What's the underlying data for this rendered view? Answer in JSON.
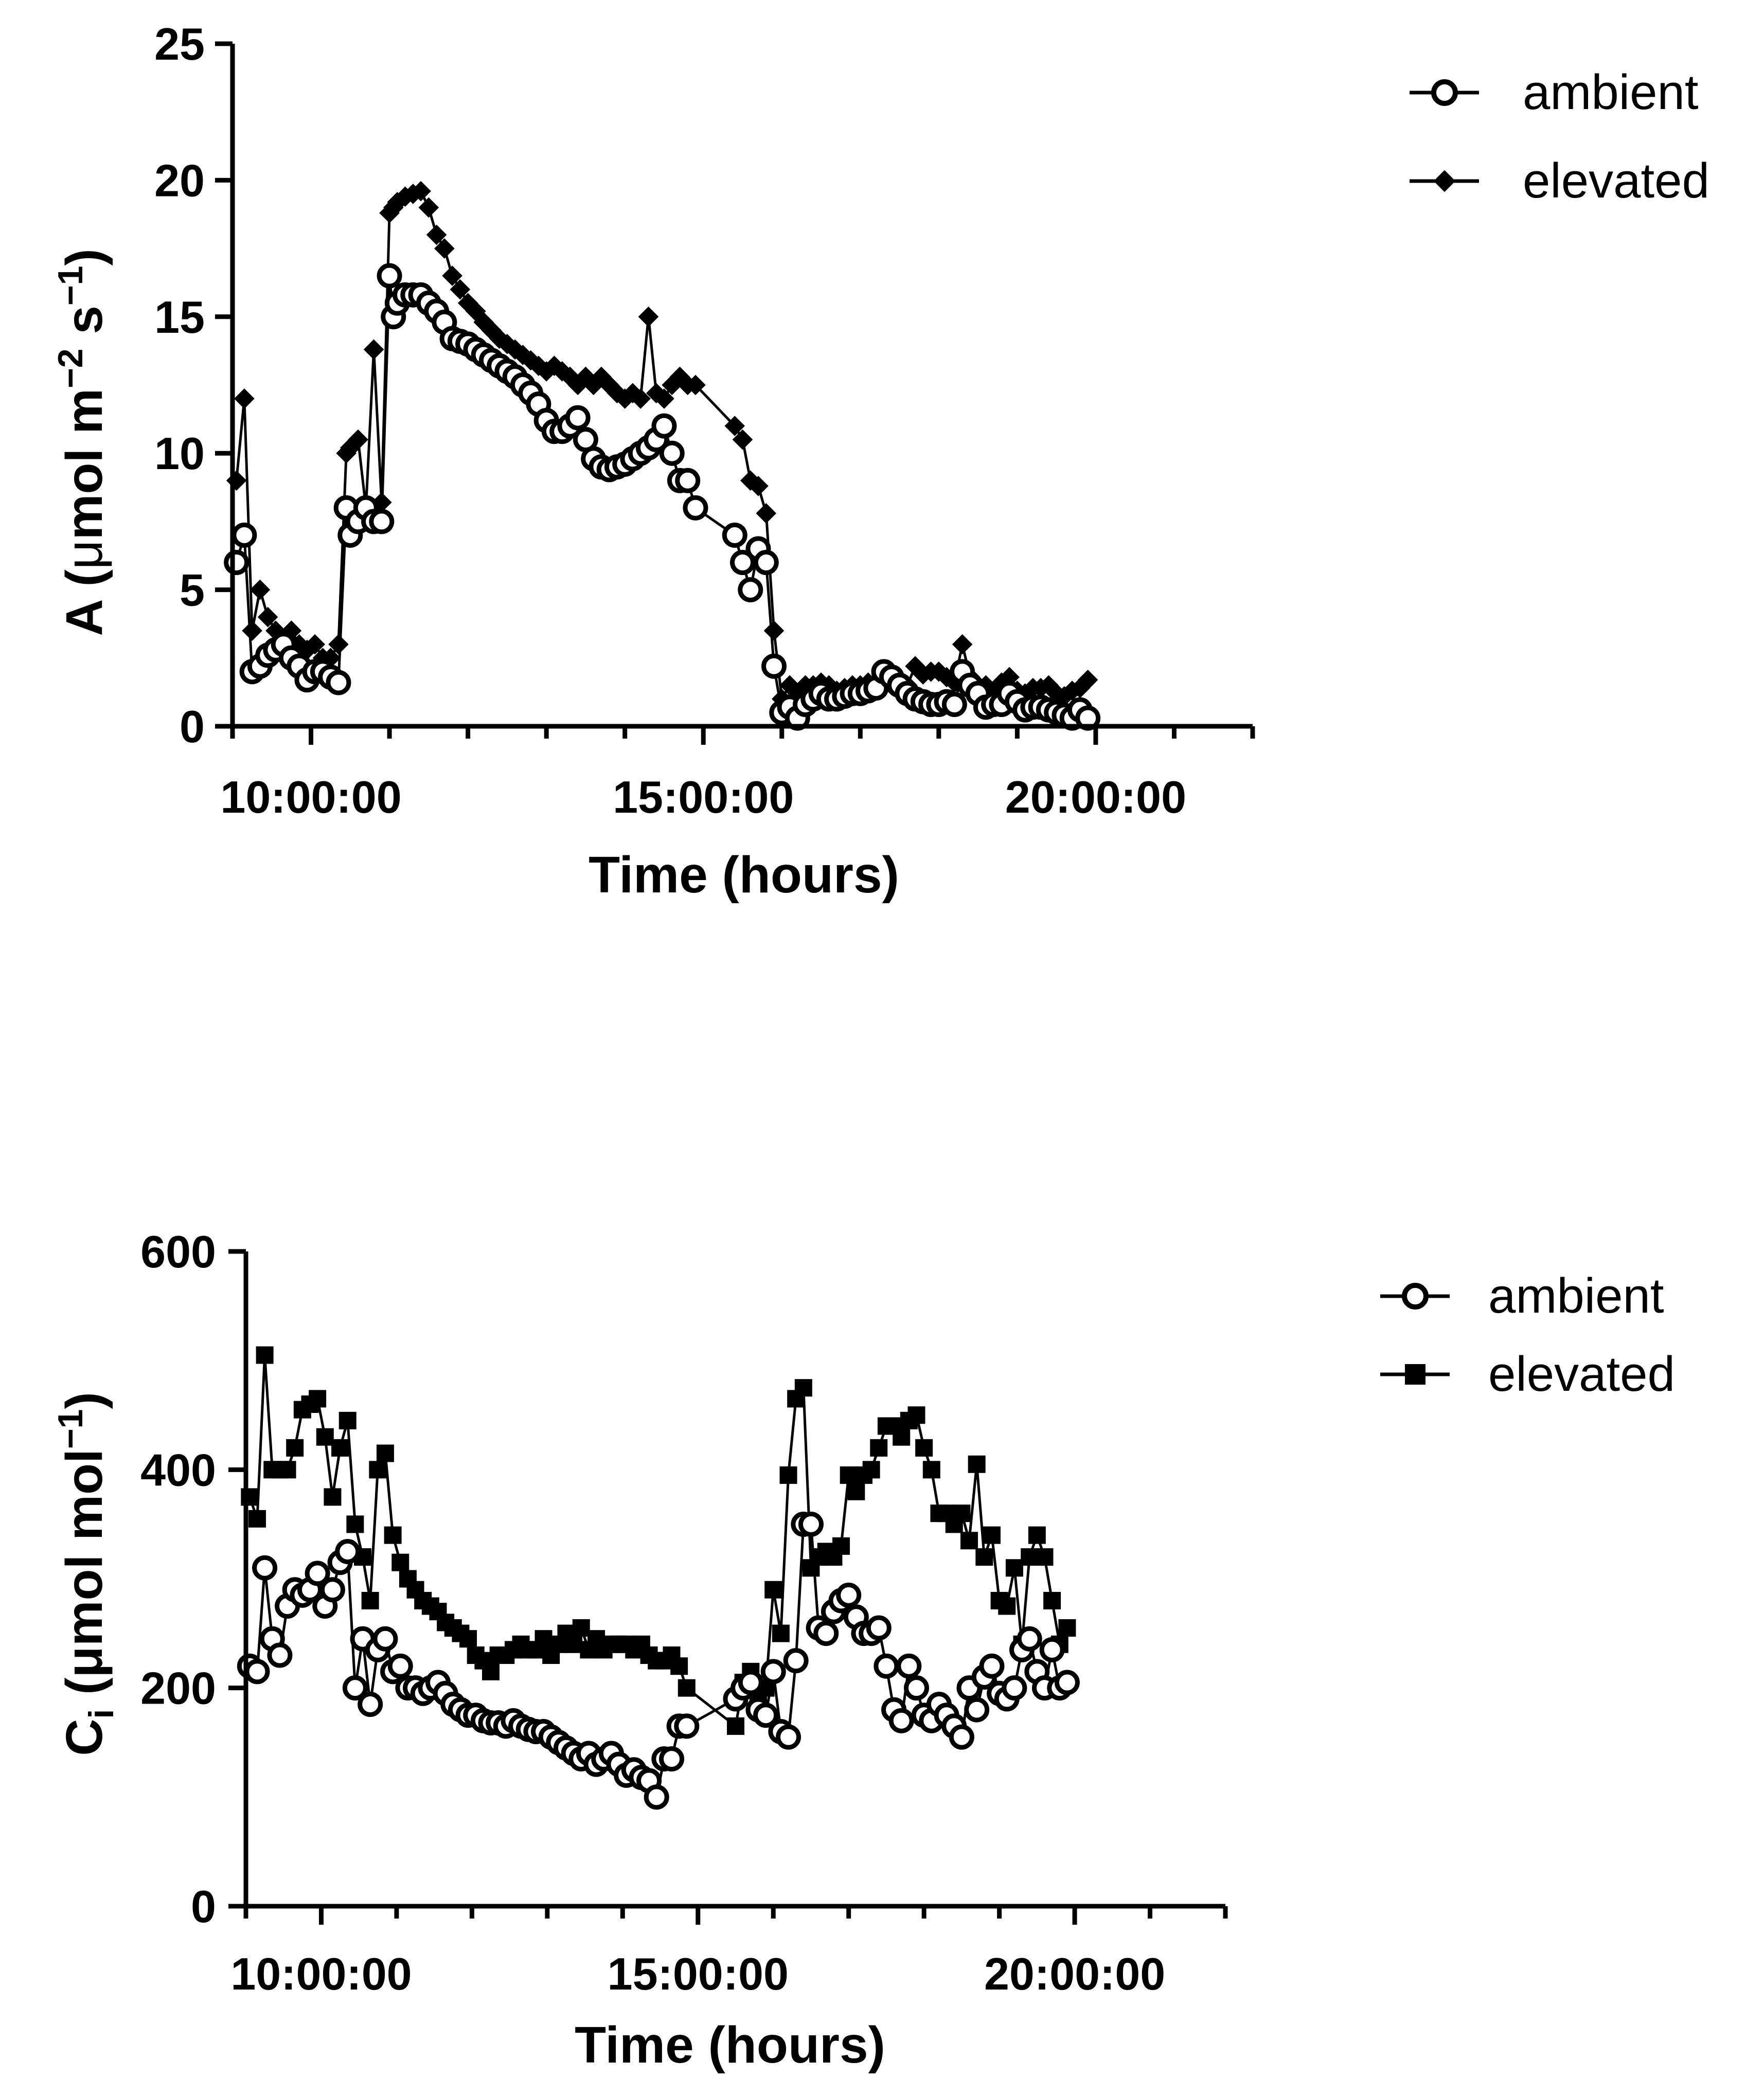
{
  "chart_data": [
    {
      "type": "line",
      "title": "",
      "xlabel": "Time (hours)",
      "ylabel": {
        "prefix": "A (",
        "mu": "μ",
        "unit": "mol m",
        "sup1": "−2",
        "mid": " s",
        "sup2": "−1",
        "suffix": ")"
      },
      "xlim": [
        9,
        22
      ],
      "ylim": [
        0,
        25
      ],
      "xticks": [
        {
          "value": 10,
          "label": "10:00:00"
        },
        {
          "value": 15,
          "label": "15:00:00"
        },
        {
          "value": 20,
          "label": "20:00:00"
        }
      ],
      "yticks": [
        {
          "value": 0,
          "label": "0"
        },
        {
          "value": 5,
          "label": "5"
        },
        {
          "value": 10,
          "label": "10"
        },
        {
          "value": 15,
          "label": "15"
        },
        {
          "value": 20,
          "label": "20"
        },
        {
          "value": 25,
          "label": "25"
        }
      ],
      "legend_position": "top-right",
      "series": [
        {
          "name": "ambient",
          "marker": "open-circle",
          "x": [
            9.05,
            9.15,
            9.25,
            9.35,
            9.45,
            9.55,
            9.65,
            9.75,
            9.85,
            9.95,
            10.05,
            10.15,
            10.25,
            10.35,
            10.45,
            10.5,
            10.6,
            10.7,
            10.8,
            10.9,
            11.0,
            11.05,
            11.1,
            11.2,
            11.3,
            11.4,
            11.5,
            11.6,
            11.7,
            11.8,
            11.9,
            12.0,
            12.1,
            12.2,
            12.3,
            12.4,
            12.5,
            12.6,
            12.7,
            12.8,
            12.9,
            13.0,
            13.1,
            13.2,
            13.3,
            13.4,
            13.5,
            13.6,
            13.7,
            13.8,
            13.9,
            14.0,
            14.1,
            14.2,
            14.3,
            14.4,
            14.5,
            14.6,
            14.7,
            14.8,
            14.9,
            15.4,
            15.5,
            15.6,
            15.7,
            15.8,
            15.9,
            16.0,
            16.1,
            16.2,
            16.3,
            16.4,
            16.5,
            16.6,
            16.7,
            16.8,
            16.9,
            17.0,
            17.1,
            17.2,
            17.3,
            17.4,
            17.5,
            17.6,
            17.7,
            17.8,
            17.9,
            18.0,
            18.1,
            18.2,
            18.3,
            18.4,
            18.5,
            18.6,
            18.7,
            18.8,
            18.9,
            19.0,
            19.1,
            19.2,
            19.3,
            19.4,
            19.5,
            19.6,
            19.7,
            19.8,
            19.9
          ],
          "y": [
            6.0,
            7.0,
            2.0,
            2.2,
            2.6,
            2.8,
            3.0,
            2.5,
            2.2,
            1.7,
            2.0,
            2.0,
            1.8,
            1.6,
            8.0,
            7.0,
            7.5,
            8.0,
            7.5,
            7.5,
            16.5,
            15.0,
            15.5,
            15.8,
            15.8,
            15.8,
            15.5,
            15.2,
            14.8,
            14.2,
            14.1,
            14.0,
            13.8,
            13.6,
            13.4,
            13.2,
            13.0,
            12.8,
            12.5,
            12.2,
            11.8,
            11.2,
            10.8,
            10.8,
            11.0,
            11.3,
            10.5,
            9.8,
            9.5,
            9.4,
            9.5,
            9.6,
            9.8,
            10.0,
            10.2,
            10.5,
            11.0,
            10.0,
            9.0,
            9.0,
            8.0,
            7.0,
            6.0,
            5.0,
            6.5,
            6.0,
            2.2,
            0.5,
            0.7,
            0.3,
            0.8,
            1.0,
            1.2,
            1.0,
            1.0,
            1.1,
            1.2,
            1.2,
            1.3,
            1.4,
            2.0,
            1.8,
            1.5,
            1.2,
            1.0,
            0.9,
            0.8,
            0.8,
            0.9,
            0.8,
            2.0,
            1.5,
            1.2,
            0.7,
            0.8,
            0.8,
            1.2,
            0.9,
            0.6,
            0.7,
            0.7,
            0.6,
            0.5,
            0.4,
            0.3,
            0.6,
            0.3
          ]
        },
        {
          "name": "elevated",
          "marker": "filled-diamond",
          "x": [
            9.05,
            9.15,
            9.25,
            9.35,
            9.45,
            9.55,
            9.65,
            9.75,
            9.85,
            9.95,
            10.05,
            10.15,
            10.25,
            10.35,
            10.45,
            10.5,
            10.6,
            10.7,
            10.8,
            10.9,
            11.0,
            11.05,
            11.1,
            11.2,
            11.3,
            11.4,
            11.5,
            11.6,
            11.7,
            11.8,
            11.9,
            12.0,
            12.1,
            12.2,
            12.3,
            12.4,
            12.5,
            12.6,
            12.7,
            12.8,
            12.9,
            13.0,
            13.1,
            13.2,
            13.3,
            13.4,
            13.5,
            13.6,
            13.7,
            13.8,
            13.9,
            14.0,
            14.1,
            14.2,
            14.3,
            14.4,
            14.5,
            14.6,
            14.7,
            14.8,
            14.9,
            15.4,
            15.5,
            15.6,
            15.7,
            15.8,
            15.9,
            16.0,
            16.1,
            16.2,
            16.3,
            16.4,
            16.5,
            16.6,
            16.7,
            16.8,
            16.9,
            17.0,
            17.1,
            17.2,
            17.3,
            17.4,
            17.5,
            17.6,
            17.7,
            17.8,
            17.9,
            18.0,
            18.1,
            18.2,
            18.3,
            18.4,
            18.5,
            18.6,
            18.7,
            18.8,
            18.9,
            19.0,
            19.1,
            19.2,
            19.3,
            19.4,
            19.5,
            19.6,
            19.7,
            19.8,
            19.9
          ],
          "y": [
            9.0,
            12.0,
            3.5,
            5.0,
            4.0,
            3.5,
            3.2,
            3.5,
            3.0,
            2.8,
            3.0,
            2.5,
            2.5,
            3.0,
            10.0,
            10.2,
            10.5,
            8.0,
            13.8,
            8.2,
            18.8,
            19.0,
            19.2,
            19.4,
            19.5,
            19.6,
            19.0,
            18.0,
            17.5,
            16.5,
            16.0,
            15.5,
            15.2,
            14.8,
            14.5,
            14.2,
            14.0,
            13.8,
            13.6,
            13.4,
            13.2,
            13.0,
            13.2,
            13.0,
            12.8,
            12.5,
            12.8,
            12.5,
            12.8,
            12.5,
            12.2,
            12.0,
            12.2,
            12.0,
            15.0,
            12.2,
            12.0,
            12.5,
            12.8,
            12.5,
            12.5,
            11.0,
            10.5,
            9.0,
            8.8,
            7.8,
            3.5,
            1.0,
            1.5,
            1.2,
            1.5,
            1.5,
            1.6,
            1.5,
            1.3,
            1.4,
            1.5,
            1.5,
            1.6,
            1.6,
            1.8,
            1.5,
            1.6,
            1.5,
            2.2,
            1.9,
            2.0,
            2.0,
            1.8,
            1.6,
            3.0,
            1.8,
            1.5,
            1.5,
            1.3,
            1.6,
            1.8,
            1.3,
            1.2,
            1.4,
            1.4,
            1.5,
            1.2,
            1.1,
            1.3,
            1.4,
            1.7
          ]
        }
      ]
    },
    {
      "type": "line",
      "title": "",
      "xlabel": "Time (hours)",
      "ylabel": {
        "prefix": "C",
        "sub": "i",
        "mid": " (μmol mol",
        "sup": "−1",
        "suffix": ")"
      },
      "xlim": [
        9,
        22
      ],
      "ylim": [
        0,
        600
      ],
      "xticks": [
        {
          "value": 10,
          "label": "10:00:00"
        },
        {
          "value": 15,
          "label": "15:00:00"
        },
        {
          "value": 20,
          "label": "20:00:00"
        }
      ],
      "yticks": [
        {
          "value": 0,
          "label": "0"
        },
        {
          "value": 200,
          "label": "200"
        },
        {
          "value": 400,
          "label": "400"
        },
        {
          "value": 600,
          "label": "600"
        }
      ],
      "legend_position": "top-right",
      "series": [
        {
          "name": "ambient",
          "marker": "open-circle",
          "x": [
            9.05,
            9.15,
            9.25,
            9.35,
            9.45,
            9.55,
            9.65,
            9.75,
            9.85,
            9.95,
            10.05,
            10.15,
            10.25,
            10.35,
            10.45,
            10.55,
            10.65,
            10.75,
            10.85,
            10.95,
            11.05,
            11.15,
            11.25,
            11.35,
            11.45,
            11.55,
            11.65,
            11.75,
            11.85,
            11.95,
            12.05,
            12.15,
            12.25,
            12.35,
            12.45,
            12.55,
            12.65,
            12.75,
            12.85,
            12.95,
            13.05,
            13.15,
            13.25,
            13.35,
            13.45,
            13.55,
            13.65,
            13.75,
            13.85,
            13.95,
            14.05,
            14.15,
            14.25,
            14.35,
            14.45,
            14.55,
            14.65,
            14.75,
            14.85,
            15.5,
            15.6,
            15.7,
            15.8,
            15.9,
            16.0,
            16.1,
            16.2,
            16.3,
            16.4,
            16.5,
            16.6,
            16.7,
            16.8,
            16.9,
            17.0,
            17.1,
            17.2,
            17.3,
            17.4,
            17.5,
            17.6,
            17.7,
            17.8,
            17.9,
            18.0,
            18.1,
            18.2,
            18.3,
            18.4,
            18.5,
            18.6,
            18.7,
            18.8,
            18.9,
            19.0,
            19.1,
            19.2,
            19.3,
            19.4,
            19.5,
            19.6,
            19.7,
            19.8,
            19.9
          ],
          "y": [
            220,
            215,
            310,
            245,
            230,
            275,
            290,
            285,
            290,
            305,
            275,
            290,
            315,
            325,
            200,
            245,
            185,
            235,
            245,
            215,
            220,
            200,
            200,
            195,
            200,
            205,
            195,
            185,
            180,
            175,
            175,
            170,
            168,
            168,
            165,
            170,
            165,
            162,
            160,
            160,
            155,
            150,
            145,
            140,
            135,
            140,
            130,
            135,
            140,
            130,
            120,
            125,
            118,
            115,
            100,
            135,
            135,
            165,
            165,
            190,
            200,
            205,
            180,
            175,
            215,
            160,
            155,
            225,
            350,
            350,
            255,
            250,
            270,
            280,
            285,
            265,
            250,
            250,
            255,
            220,
            180,
            170,
            220,
            200,
            175,
            170,
            185,
            175,
            165,
            155,
            200,
            180,
            210,
            220,
            195,
            190,
            200,
            235,
            245,
            215,
            200,
            235,
            200,
            205
          ]
        },
        {
          "name": "elevated",
          "marker": "filled-square",
          "x": [
            9.05,
            9.15,
            9.25,
            9.35,
            9.45,
            9.55,
            9.65,
            9.75,
            9.85,
            9.95,
            10.05,
            10.15,
            10.25,
            10.35,
            10.45,
            10.55,
            10.65,
            10.75,
            10.85,
            10.95,
            11.05,
            11.15,
            11.25,
            11.35,
            11.45,
            11.55,
            11.65,
            11.75,
            11.85,
            11.95,
            12.05,
            12.15,
            12.25,
            12.35,
            12.45,
            12.55,
            12.65,
            12.75,
            12.85,
            12.95,
            13.05,
            13.15,
            13.25,
            13.35,
            13.45,
            13.55,
            13.65,
            13.75,
            13.85,
            13.95,
            14.05,
            14.15,
            14.25,
            14.35,
            14.45,
            14.55,
            14.65,
            14.75,
            14.85,
            15.5,
            15.6,
            15.7,
            15.8,
            15.9,
            16.0,
            16.1,
            16.2,
            16.3,
            16.4,
            16.5,
            16.6,
            16.7,
            16.8,
            16.9,
            17.0,
            17.1,
            17.2,
            17.3,
            17.4,
            17.5,
            17.6,
            17.7,
            17.8,
            17.9,
            18.0,
            18.1,
            18.2,
            18.3,
            18.4,
            18.5,
            18.6,
            18.7,
            18.8,
            18.9,
            19.0,
            19.1,
            19.2,
            19.3,
            19.4,
            19.5,
            19.6,
            19.7,
            19.8,
            19.9
          ],
          "y": [
            375,
            355,
            505,
            400,
            400,
            400,
            420,
            455,
            460,
            465,
            430,
            375,
            420,
            445,
            350,
            320,
            280,
            400,
            415,
            340,
            315,
            300,
            290,
            280,
            275,
            270,
            260,
            255,
            250,
            245,
            230,
            225,
            215,
            230,
            230,
            235,
            240,
            235,
            235,
            245,
            230,
            240,
            250,
            240,
            255,
            235,
            245,
            235,
            240,
            240,
            240,
            235,
            240,
            230,
            225,
            225,
            230,
            220,
            200,
            165,
            205,
            215,
            185,
            200,
            290,
            250,
            395,
            465,
            475,
            310,
            320,
            325,
            320,
            330,
            395,
            380,
            395,
            400,
            420,
            440,
            440,
            430,
            445,
            450,
            420,
            400,
            360,
            360,
            350,
            360,
            335,
            405,
            320,
            340,
            280,
            275,
            310,
            240,
            320,
            340,
            320,
            280,
            240,
            255
          ]
        }
      ]
    }
  ]
}
